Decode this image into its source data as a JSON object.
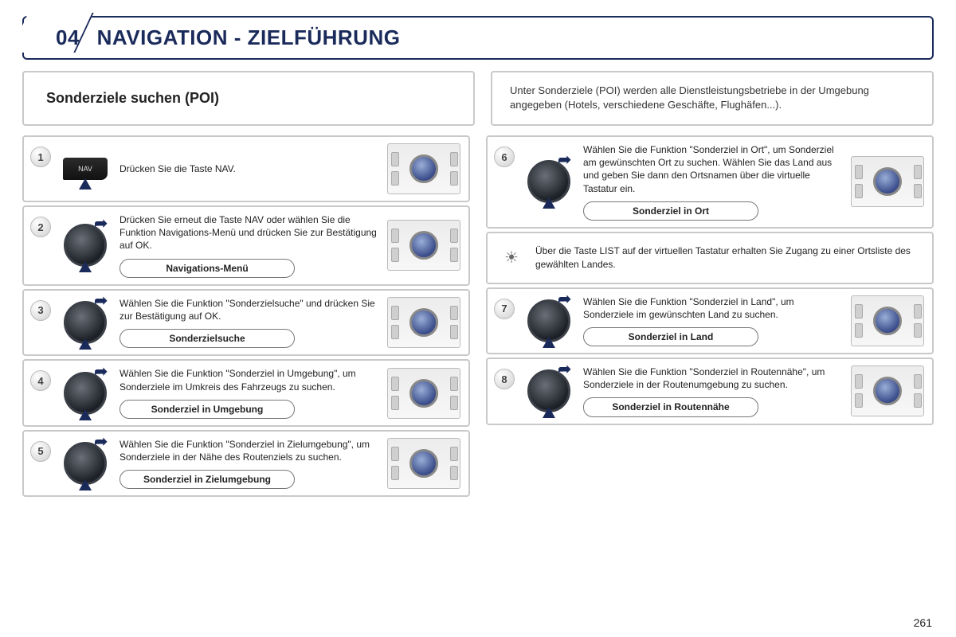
{
  "header": {
    "num": "04",
    "title": "NAVIGATION - ZIELFÜHRUNG"
  },
  "intro": {
    "left": "Sonderziele suchen (POI)",
    "right": "Unter Sonderziele (POI) werden alle Dienstleistungsbetriebe in der Umgebung angegeben (Hotels, verschiedene Geschäfte, Flughäfen...)."
  },
  "left_steps": [
    {
      "n": "1",
      "icon": "nav",
      "text": "Drücken Sie die Taste NAV.",
      "menu": null
    },
    {
      "n": "2",
      "icon": "knob",
      "text": "Drücken Sie erneut die Taste NAV oder wählen Sie die Funktion Navigations-Menü und drücken Sie zur Bestätigung auf OK.",
      "menu": "Navigations-Menü"
    },
    {
      "n": "3",
      "icon": "knob",
      "text": "Wählen Sie die Funktion \"Sonderzielsuche\" und drücken Sie zur Bestätigung auf OK.",
      "menu": "Sonderzielsuche"
    },
    {
      "n": "4",
      "icon": "knob",
      "text": "Wählen Sie die Funktion \"Sonderziel in Umgebung\", um Sonderziele im Umkreis des Fahrzeugs zu suchen.",
      "menu": "Sonderziel in Umgebung"
    },
    {
      "n": "5",
      "icon": "knob",
      "text": "Wählen Sie die Funktion \"Sonderziel in Zielumgebung\", um Sonderziele in der Nähe des Routenziels zu suchen.",
      "menu": "Sonderziel in Zielumgebung"
    }
  ],
  "right_steps": [
    {
      "n": "6",
      "icon": "knob",
      "text": "Wählen Sie die Funktion \"Sonderziel in Ort\", um Sonderziel am gewünschten Ort zu suchen. Wählen Sie das Land aus und geben Sie dann den Ortsnamen über die virtuelle Tastatur ein.",
      "menu": "Sonderziel in Ort"
    },
    {
      "type": "note",
      "text": "Über die Taste LIST auf der virtuellen Tastatur erhalten Sie Zugang zu einer Ortsliste des gewählten Landes."
    },
    {
      "n": "7",
      "icon": "knob",
      "text": "Wählen Sie die Funktion \"Sonderziel in Land\", um Sonderziele im gewünschten Land zu suchen.",
      "menu": "Sonderziel in Land"
    },
    {
      "n": "8",
      "icon": "knob",
      "text": "Wählen Sie die Funktion \"Sonderziel in Routennähe\", um Sonderziele in der Routenumgebung zu suchen.",
      "menu": "Sonderziel in Routennähe"
    }
  ],
  "nav_label": "NAV",
  "page": "261"
}
